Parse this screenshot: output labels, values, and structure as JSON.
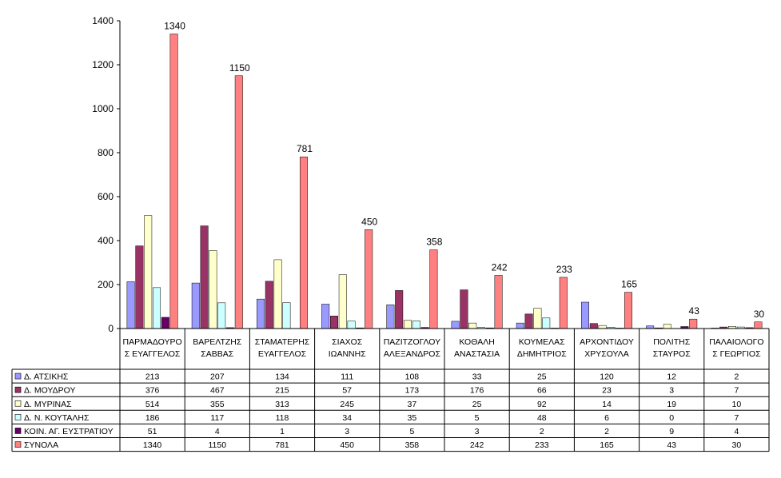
{
  "chart_data": {
    "type": "bar",
    "categories": [
      [
        "ΠΑΡΜΑΔΟΥΡΟ",
        "Σ ΕΥΑΓΓΕΛΟΣ"
      ],
      [
        "ΒΑΡΕΛΤΖΗΣ",
        "ΣΑΒΒΑΣ"
      ],
      [
        "ΣΤΑΜΑΤΕΡΗΣ",
        "ΕΥΑΓΓΕΛΟΣ"
      ],
      [
        "ΣΙΑΧΟΣ",
        "ΙΩΑΝΝΗΣ"
      ],
      [
        "ΠΑΖΙΤΖΟΓΛΟΥ",
        "ΑΛΕΞΑΝΔΡΟΣ"
      ],
      [
        "ΚΟΘΑΛΗ",
        "ΑΝΑΣΤΑΣΙΑ"
      ],
      [
        "ΚΟΥΜΕΛΑΣ",
        "ΔΗΜΗΤΡΙΟΣ"
      ],
      [
        "ΑΡΧΟΝΤΙΔΟΥ",
        "ΧΡΥΣΟΥΛΑ"
      ],
      [
        "ΠΟΛΙΤΗΣ",
        "ΣΤΑΥΡΟΣ"
      ],
      [
        "ΠΑΛΑΙΟΛΟΓΟ",
        "Σ ΓΕΩΡΓΙΟΣ"
      ]
    ],
    "series": [
      {
        "name": "Δ. ΑΤΣΙΚΗΣ",
        "color": "#9999ff",
        "values": [
          213,
          207,
          134,
          111,
          108,
          33,
          25,
          120,
          12,
          2
        ]
      },
      {
        "name": "Δ. ΜΟΥΔΡΟΥ",
        "color": "#993366",
        "values": [
          376,
          467,
          215,
          57,
          173,
          176,
          66,
          23,
          3,
          7
        ]
      },
      {
        "name": "Δ. ΜΥΡΙΝΑΣ",
        "color": "#ffffcc",
        "values": [
          514,
          355,
          313,
          245,
          37,
          25,
          92,
          14,
          19,
          10
        ]
      },
      {
        "name": "Δ. Ν. ΚΟΥΤΑΛΗΣ",
        "color": "#ccffff",
        "values": [
          186,
          117,
          118,
          34,
          35,
          5,
          48,
          6,
          0,
          7
        ]
      },
      {
        "name": "ΚΟΙΝ. ΑΓ. ΕΥΣΤΡΑΤΙΟΥ",
        "color": "#660066",
        "values": [
          51,
          4,
          1,
          3,
          5,
          3,
          2,
          2,
          9,
          4
        ]
      },
      {
        "name": "ΣΥΝΟΛΑ",
        "color": "#ff8080",
        "values": [
          1340,
          1150,
          781,
          450,
          358,
          242,
          233,
          165,
          43,
          30
        ]
      }
    ],
    "data_labels_series": "ΣΥΝΟΛΑ",
    "ylim": [
      0,
      1400
    ],
    "yticks": [
      0,
      200,
      400,
      600,
      800,
      1000,
      1200,
      1400
    ],
    "grid": false,
    "legend": "data-table-left",
    "title": "",
    "xlabel": "",
    "ylabel": ""
  }
}
